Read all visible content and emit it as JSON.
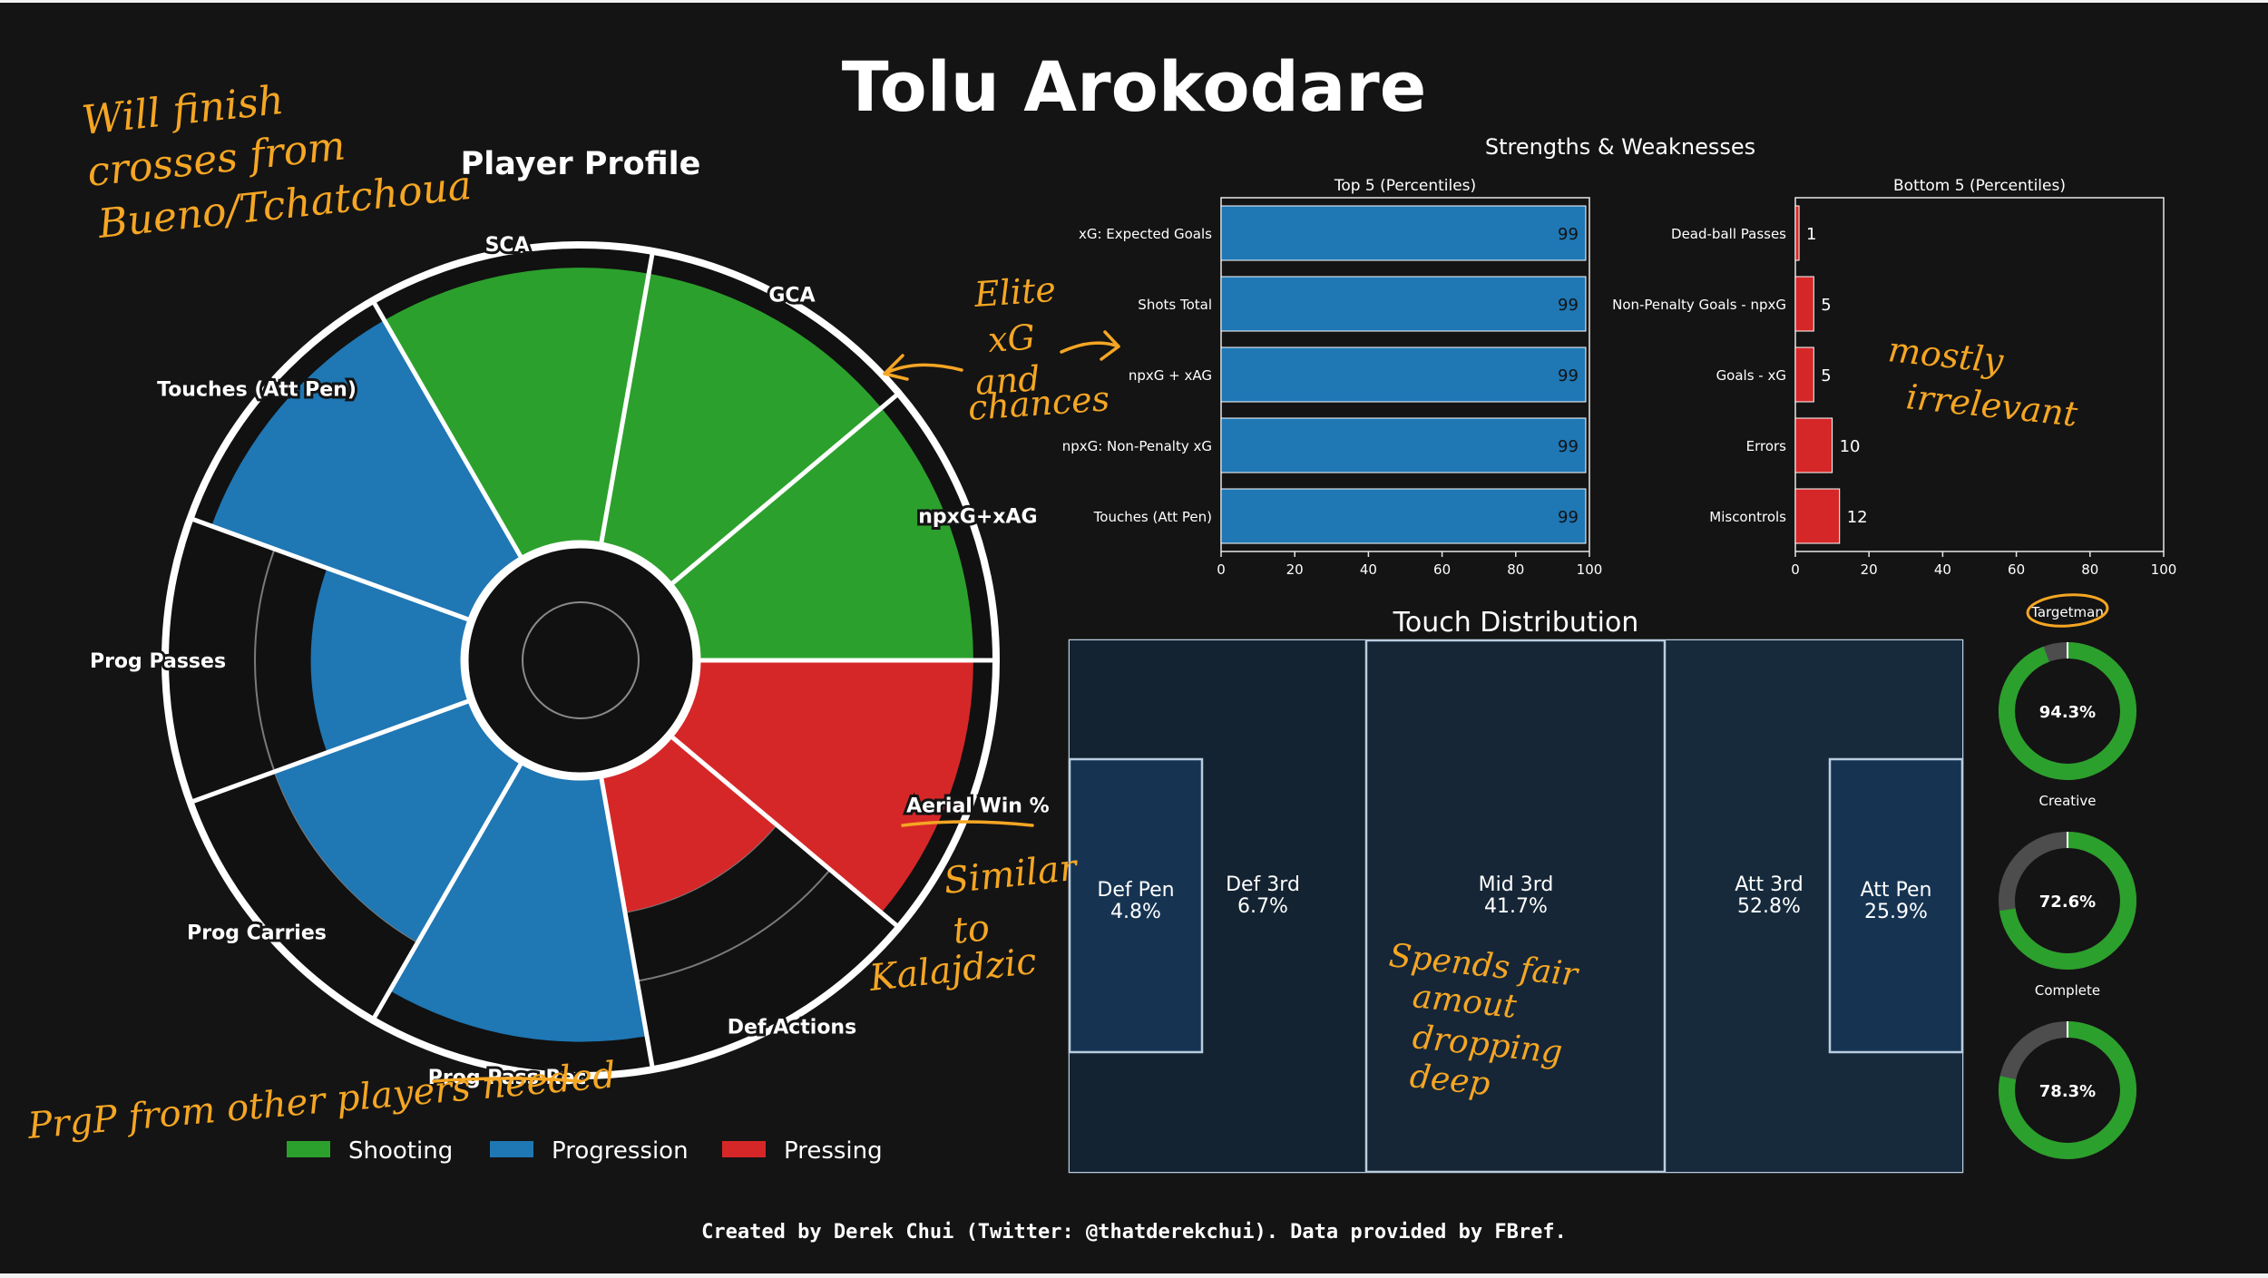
{
  "title": "Tolu Arokodare",
  "credit": "Created by Derek Chui (Twitter: @thatderekchui). Data provided by FBref.",
  "colors": {
    "background": "#141414",
    "shooting": "#2ca02c",
    "progression": "#1f77b4",
    "pressing": "#d62728",
    "pitch": "#162636",
    "box": "#163452",
    "pitch_line": "#b9cde0",
    "annotation": "#f5a623",
    "donut_track": "#4d4d4d"
  },
  "chart_data": [
    {
      "type": "polar-bar",
      "title": "Player Profile",
      "categories": [
        "npxG+xAG",
        "GCA",
        "SCA",
        "Touches (Att Pen)",
        "Prog Passes",
        "Prog Carries",
        "Prog Pass Rec",
        "Def Actions",
        "Aerial Win %"
      ],
      "groups": [
        "Shooting",
        "Shooting",
        "Shooting",
        "Progression",
        "Progression",
        "Progression",
        "Progression",
        "Pressing",
        "Pressing"
      ],
      "values": [
        99,
        99,
        99,
        99,
        55,
        75,
        95,
        50,
        99
      ],
      "ylim": [
        0,
        100
      ],
      "legend": [
        {
          "name": "Shooting",
          "color": "#2ca02c"
        },
        {
          "name": "Progression",
          "color": "#1f77b4"
        },
        {
          "name": "Pressing",
          "color": "#d62728"
        }
      ],
      "legend_position": "bottom"
    },
    {
      "type": "bar",
      "orientation": "horizontal",
      "suptitle": "Strengths & Weaknesses",
      "title": "Top 5 (Percentiles)",
      "categories": [
        "xG: Expected Goals",
        "Shots Total",
        "npxG + xAG",
        "npxG: Non-Penalty xG",
        "Touches (Att Pen)"
      ],
      "values": [
        99,
        99,
        99,
        99,
        99
      ],
      "xlim": [
        0,
        100
      ],
      "xticks": [
        0,
        20,
        40,
        60,
        80,
        100
      ]
    },
    {
      "type": "bar",
      "orientation": "horizontal",
      "title": "Bottom 5 (Percentiles)",
      "categories": [
        "Dead-ball Passes",
        "Non-Penalty Goals - npxG",
        "Goals - xG",
        "Errors",
        "Miscontrols"
      ],
      "values": [
        1,
        5,
        5,
        10,
        12
      ],
      "xlim": [
        0,
        100
      ],
      "xticks": [
        0,
        20,
        40,
        60,
        80,
        100
      ]
    },
    {
      "type": "heatmap",
      "title": "Touch Distribution",
      "zones": [
        {
          "name": "Def Pen",
          "value": "4.8%"
        },
        {
          "name": "Def 3rd",
          "value": "6.7%"
        },
        {
          "name": "Mid 3rd",
          "value": "41.7%"
        },
        {
          "name": "Att 3rd",
          "value": "52.8%"
        },
        {
          "name": "Att Pen",
          "value": "25.9%"
        }
      ]
    },
    {
      "type": "pie",
      "style": "donut",
      "items": [
        {
          "label": "Targetman",
          "value": 94.3,
          "text": "94.3%"
        },
        {
          "label": "Creative",
          "value": 72.6,
          "text": "72.6%"
        },
        {
          "label": "Complete",
          "value": 78.3,
          "text": "78.3%"
        }
      ]
    }
  ],
  "annotations": {
    "top_left": [
      "Will finish",
      "crosses from",
      "Bueno/Tchatchoua"
    ],
    "elite": [
      "Elite",
      "xG",
      "and",
      "chances"
    ],
    "irrelevant": [
      "mostly",
      "irrelevant"
    ],
    "similar": [
      "Similar",
      "to",
      "Kalajdzic"
    ],
    "dropping": [
      "Spends fair",
      "amout",
      "dropping",
      "deep"
    ],
    "prgp": "PrgP from other players needed"
  }
}
